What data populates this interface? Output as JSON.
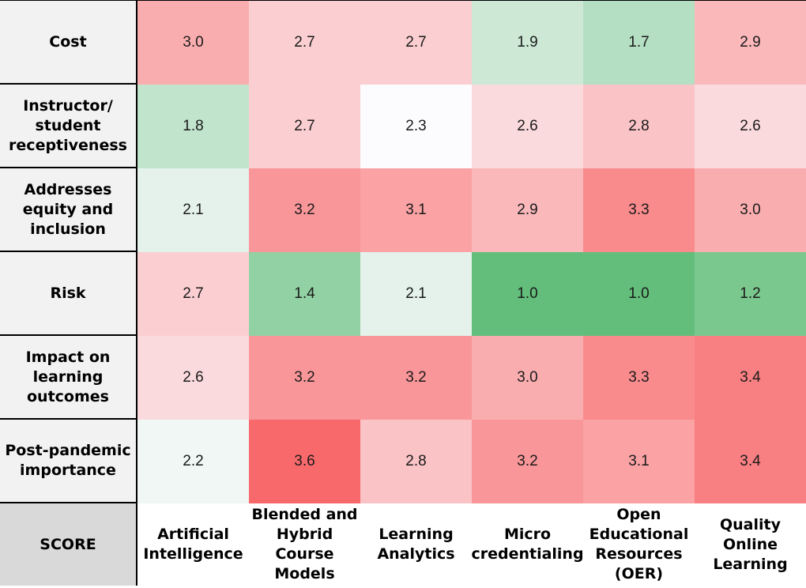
{
  "chart_data": {
    "type": "heatmap",
    "corner_label": "SCORE",
    "rows": [
      "Cost",
      "Instructor/ student receptiveness",
      "Addresses equity and inclusion",
      "Risk",
      "Impact on learning outcomes",
      "Post-pandemic importance"
    ],
    "columns": [
      "Artificial Intelligence",
      "Blended and Hybrid Course Models",
      "Learning Analytics",
      "Micro credentialing",
      "Open Educational Resources (OER)",
      "Quality Online Learning"
    ],
    "values": [
      [
        3.0,
        2.7,
        2.7,
        1.9,
        1.7,
        2.9
      ],
      [
        1.8,
        2.7,
        2.3,
        2.6,
        2.8,
        2.6
      ],
      [
        2.1,
        3.2,
        3.1,
        2.9,
        3.3,
        3.0
      ],
      [
        2.7,
        1.4,
        2.1,
        1.0,
        1.0,
        1.2
      ],
      [
        2.6,
        3.2,
        3.2,
        3.0,
        3.3,
        3.4
      ],
      [
        2.2,
        3.6,
        2.8,
        3.2,
        3.1,
        3.4
      ]
    ],
    "colors": {
      "low": "#63be7b",
      "mid": "#fcfcff",
      "high": "#f8696b"
    },
    "legend": "none",
    "grid": false
  }
}
